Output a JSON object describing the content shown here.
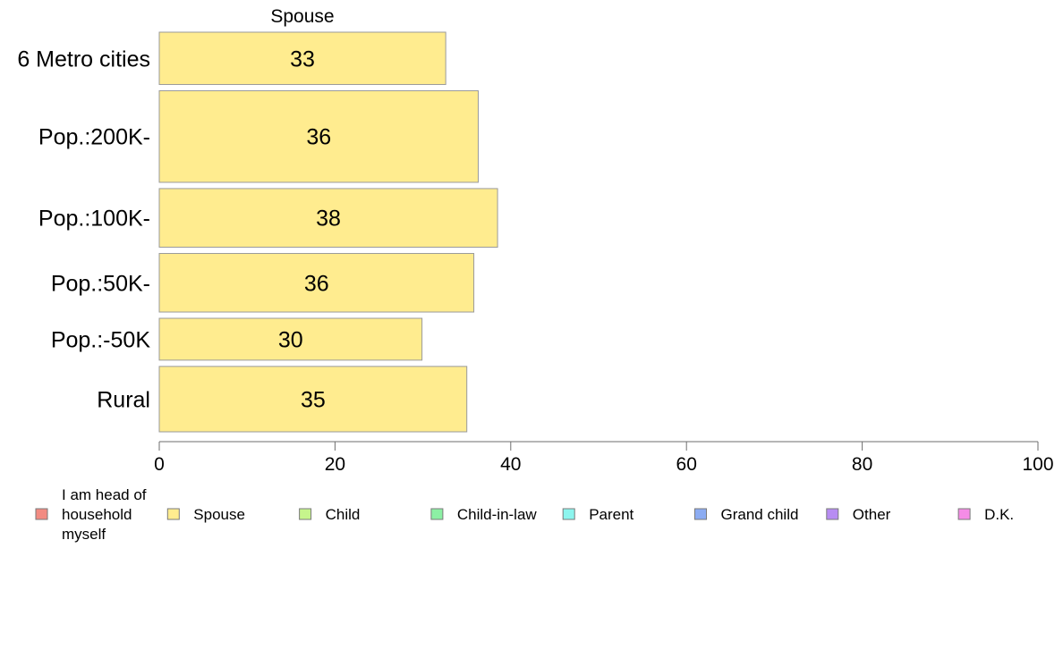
{
  "chart_data": {
    "type": "bar",
    "orientation": "horizontal",
    "stacked": true,
    "header_label": "Spouse",
    "categories": [
      "6 Metro cities",
      "Pop.:200K-",
      "Pop.:100K-",
      "Pop.:50K-",
      "Pop.:-50K",
      "Rural"
    ],
    "category_weights": [
      1.0,
      1.75,
      1.12,
      1.12,
      0.8,
      1.25
    ],
    "series": [
      {
        "name": "I am head of household myself",
        "color": "#f28b82",
        "values": [
          0,
          0,
          0,
          0,
          0,
          0
        ],
        "labels": [
          "",
          "",
          "",
          "",
          "",
          ""
        ]
      },
      {
        "name": "Spouse",
        "color": "#ffec8f",
        "values": [
          32.6,
          36.3,
          38.5,
          35.8,
          29.9,
          35.0
        ],
        "labels": [
          "33",
          "36",
          "38",
          "36",
          "30",
          "35"
        ]
      },
      {
        "name": "Child",
        "color": "#c6f58c",
        "values": [
          0,
          0,
          0,
          0,
          0,
          0
        ],
        "labels": [
          "",
          "",
          "",
          "",
          "",
          ""
        ]
      },
      {
        "name": "Child-in-law",
        "color": "#8cf0a4",
        "values": [
          0,
          0,
          0,
          0,
          0,
          0
        ],
        "labels": [
          "",
          "",
          "",
          "",
          "",
          ""
        ]
      },
      {
        "name": "Parent",
        "color": "#8cf5ee",
        "values": [
          0,
          0,
          0,
          0,
          0,
          0
        ],
        "labels": [
          "",
          "",
          "",
          "",
          "",
          ""
        ]
      },
      {
        "name": "Grand child",
        "color": "#8cacf2",
        "values": [
          0,
          0,
          0,
          0,
          0,
          0
        ],
        "labels": [
          "",
          "",
          "",
          "",
          "",
          ""
        ]
      },
      {
        "name": "Other",
        "color": "#b78cf2",
        "values": [
          0,
          0,
          0,
          0,
          0,
          0
        ],
        "labels": [
          "",
          "",
          "",
          "",
          "",
          ""
        ]
      },
      {
        "name": "D.K.",
        "color": "#f58ce6",
        "values": [
          0,
          0,
          0,
          0,
          0,
          0
        ],
        "labels": [
          "",
          "",
          "",
          "",
          "",
          ""
        ]
      }
    ],
    "legend_lines": [
      [
        "I am head of",
        "household",
        "myself"
      ],
      [
        "Spouse"
      ],
      [
        "Child"
      ],
      [
        "Child-in-law"
      ],
      [
        "Parent"
      ],
      [
        "Grand child"
      ],
      [
        "Other"
      ],
      [
        "D.K."
      ]
    ],
    "xlim": [
      0,
      100
    ],
    "xticks": [
      0,
      20,
      40,
      60,
      80,
      100
    ],
    "grid": false,
    "legend_position": "bottom"
  }
}
